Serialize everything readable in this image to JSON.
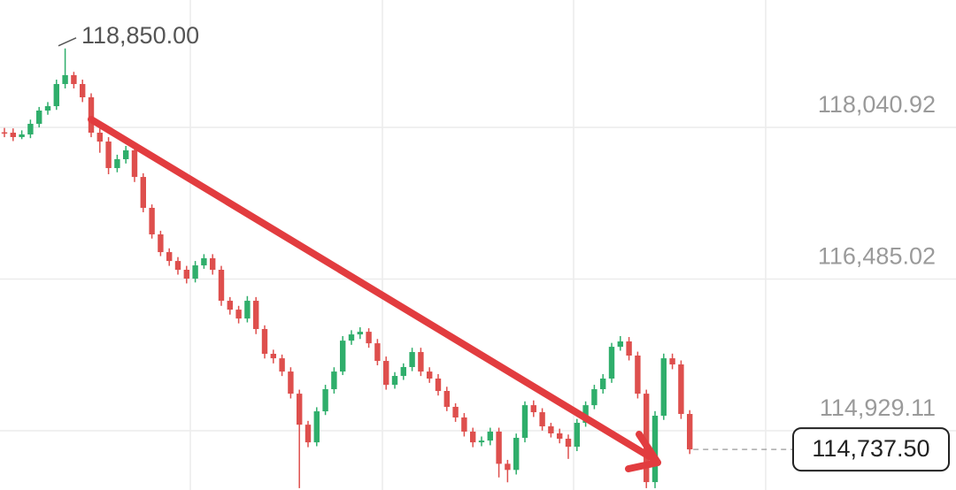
{
  "chart_data": {
    "type": "candlestick",
    "up_color": "#2fae6b",
    "down_color": "#de4f4d",
    "ylim": [
      114321,
      119347
    ],
    "yticks": [
      {
        "value": 114929.11,
        "label": "114,929.11"
      },
      {
        "value": 116485.02,
        "label": "116,485.02"
      },
      {
        "value": 118040.92,
        "label": "118,040.92"
      }
    ],
    "grid": true,
    "open": [
      117990,
      117986,
      117941,
      117968,
      118077,
      118213,
      118258,
      118485,
      118576,
      118485,
      118349,
      117986,
      117895,
      117623,
      117714,
      117805,
      117532,
      117215,
      116943,
      116761,
      116670,
      116580,
      116489,
      116625,
      116698,
      116580,
      116262,
      116171,
      116080,
      116262,
      115972,
      115718,
      115672,
      115536,
      115309,
      114991,
      114810,
      115128,
      115355,
      115536,
      115853,
      115917,
      115944,
      115826,
      115645,
      115400,
      115491,
      115582,
      115736,
      115536,
      115464,
      115337,
      115174,
      115065,
      114920,
      114810,
      114828,
      114920,
      114590,
      114527,
      114856,
      115191,
      115119,
      114974,
      114902,
      114847,
      114765,
      115010,
      115191,
      115355,
      115464,
      115790,
      115845,
      115700,
      115309,
      114402,
      115083,
      115672,
      115609,
      115101
    ],
    "high": [
      118035,
      118030,
      118010,
      118120,
      118250,
      118300,
      118530,
      118850,
      118610,
      118530,
      118390,
      118030,
      117940,
      117760,
      117850,
      117840,
      117570,
      117250,
      116980,
      116800,
      116710,
      116620,
      116670,
      116740,
      116740,
      116620,
      116300,
      116210,
      116310,
      116300,
      116010,
      115760,
      115710,
      115580,
      115350,
      115030,
      115170,
      115400,
      115580,
      115900,
      115960,
      115990,
      115980,
      115870,
      115690,
      115530,
      115620,
      115780,
      115780,
      115580,
      115510,
      115380,
      115210,
      115110,
      114960,
      114870,
      114960,
      114960,
      114630,
      114900,
      115230,
      115240,
      115160,
      115010,
      114950,
      114890,
      115050,
      115230,
      115400,
      115510,
      115830,
      115900,
      115890,
      115740,
      115350,
      115130,
      115720,
      115720,
      115650,
      115140
    ],
    "low": [
      117940,
      117900,
      117920,
      117930,
      118040,
      118170,
      118220,
      118440,
      118440,
      118300,
      117940,
      117780,
      117560,
      117580,
      117670,
      117480,
      117170,
      116900,
      116720,
      116620,
      116530,
      116440,
      116450,
      116590,
      116530,
      116210,
      116120,
      116030,
      116040,
      115920,
      115670,
      115620,
      115490,
      115260,
      114340,
      114760,
      114770,
      115090,
      115310,
      115500,
      115810,
      115870,
      115780,
      115600,
      115350,
      115360,
      115450,
      115540,
      115490,
      115420,
      115290,
      115130,
      115020,
      114870,
      114760,
      114770,
      114780,
      114450,
      114400,
      114480,
      114810,
      115070,
      114930,
      114860,
      114800,
      114640,
      114720,
      114970,
      115150,
      115310,
      115420,
      115750,
      115650,
      115260,
      114340,
      114340,
      115040,
      115560,
      115050,
      114690
    ],
    "close": [
      117986,
      117941,
      117968,
      118077,
      118213,
      118258,
      118485,
      118576,
      118485,
      118349,
      117986,
      117895,
      117623,
      117714,
      117805,
      117532,
      117215,
      116943,
      116761,
      116670,
      116580,
      116489,
      116625,
      116698,
      116580,
      116262,
      116171,
      116080,
      116262,
      115972,
      115718,
      115672,
      115536,
      115309,
      114991,
      114810,
      115128,
      115355,
      115536,
      115853,
      115917,
      115944,
      115826,
      115645,
      115400,
      115491,
      115582,
      115736,
      115536,
      115464,
      115337,
      115174,
      115065,
      114920,
      114810,
      114828,
      114920,
      114590,
      114527,
      114856,
      115191,
      115119,
      114974,
      114902,
      114847,
      114765,
      115010,
      115191,
      115355,
      115464,
      115790,
      115845,
      115700,
      115309,
      114402,
      115083,
      115672,
      115609,
      115101,
      114737.5
    ],
    "annotations": [
      {
        "value": 118850,
        "label": "118,850.00"
      },
      {
        "value": 114737.5,
        "label": "114,737.50"
      }
    ]
  }
}
